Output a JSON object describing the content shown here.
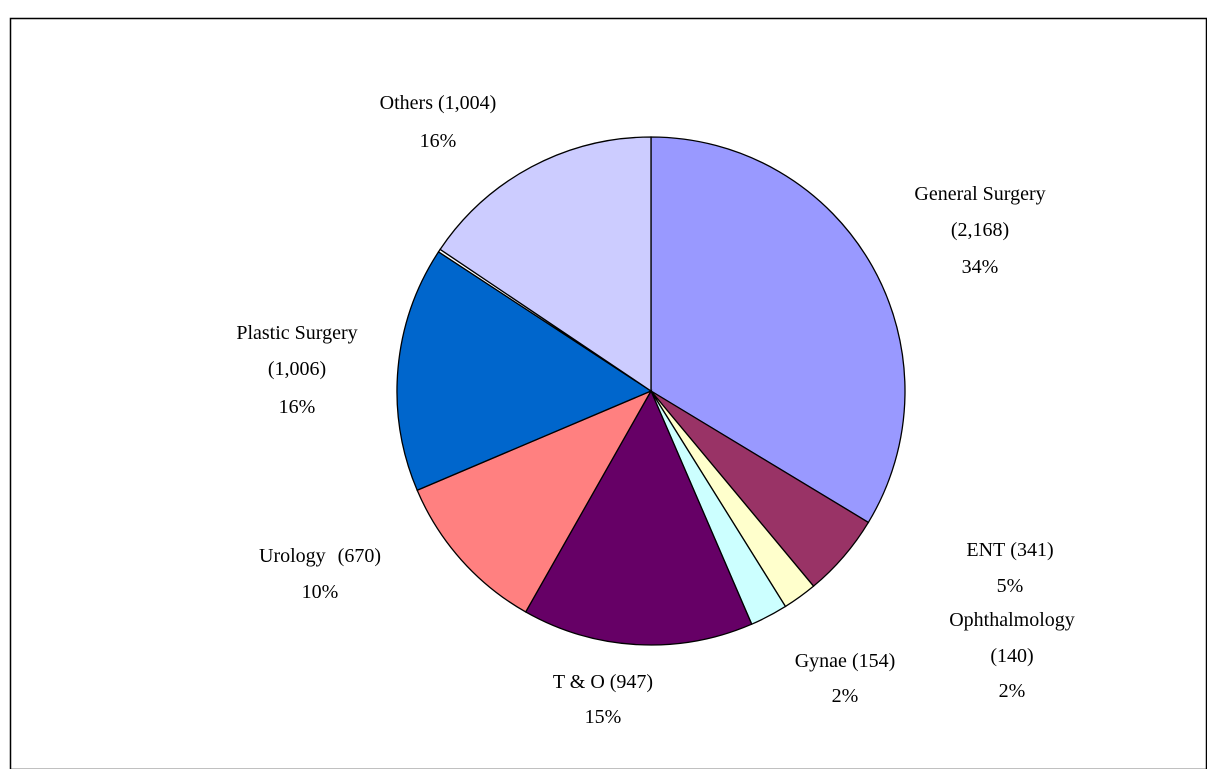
{
  "chart_data": {
    "type": "pie",
    "categories": [
      "General Surgery",
      "ENT",
      "Ophthalmology",
      "Gynae",
      "T & O",
      "Urology",
      "Plastic Surgery",
      null,
      "Others"
    ],
    "values": [
      2168,
      341,
      140,
      154,
      947,
      670,
      1006,
      12,
      1004
    ],
    "value_labels": [
      "(2,168)",
      "(341)",
      "(140)",
      "(154)",
      "(947)",
      "(670)",
      "(1,006)",
      null,
      "(1,004)"
    ],
    "percent_labels": [
      "34%",
      "5%",
      "2%",
      "2%",
      "15%",
      "10%",
      "16%",
      null,
      "16%"
    ],
    "colors": [
      "#9999ff",
      "#993366",
      "#ffffcc",
      "#ccffff",
      "#660066",
      "#ff8080",
      "#0066cc",
      "#ffffff",
      "#ccccff"
    ]
  }
}
